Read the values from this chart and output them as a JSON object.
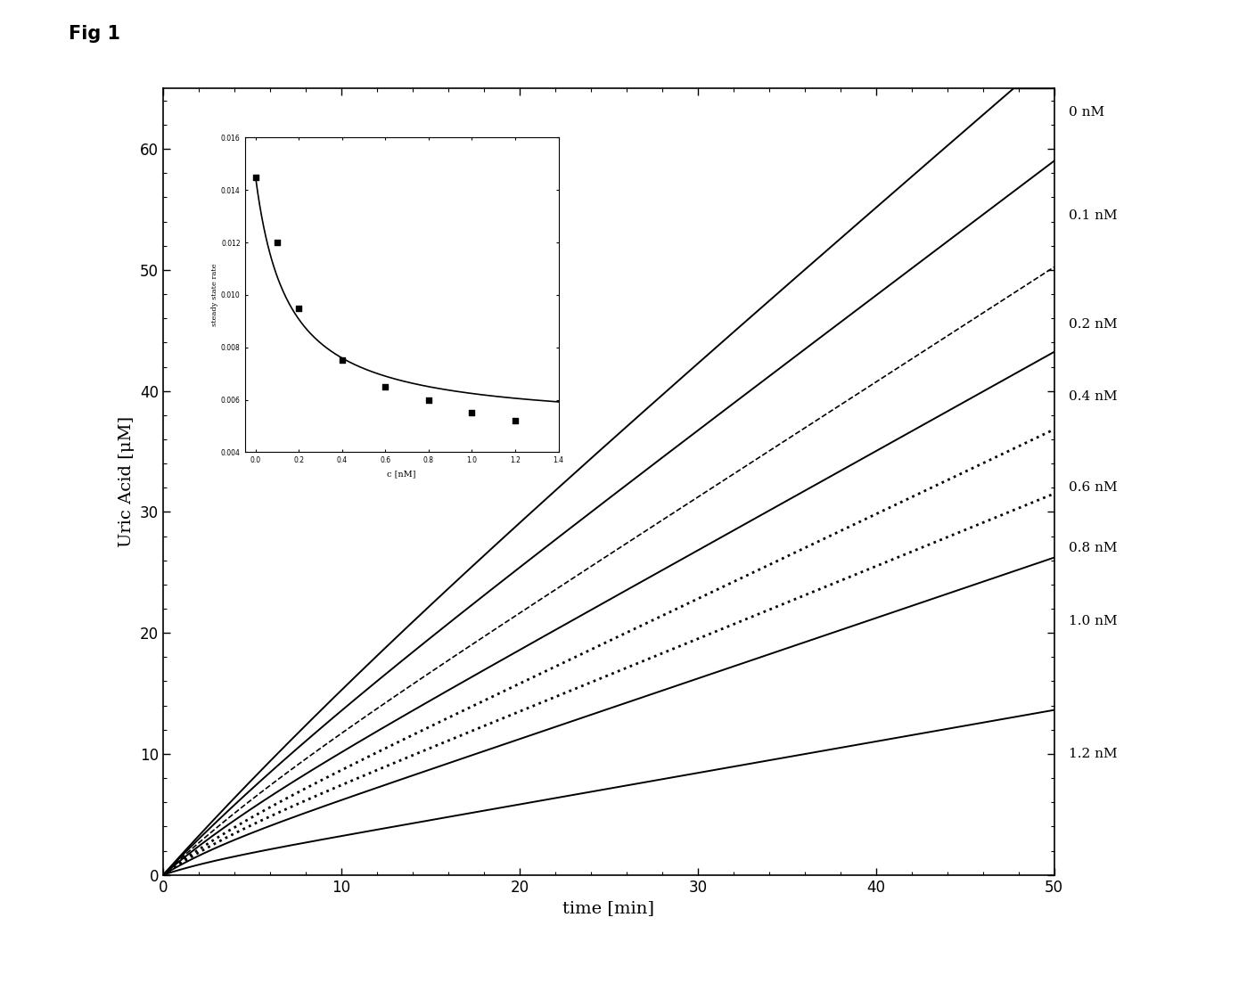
{
  "fig_label": "Fig 1",
  "xlabel": "time [min]",
  "ylabel": "Uric Acid [μM]",
  "xlim": [
    0,
    50
  ],
  "ylim": [
    0,
    65
  ],
  "xticks": [
    0,
    10,
    20,
    30,
    40,
    50
  ],
  "yticks": [
    0,
    10,
    20,
    30,
    40,
    50,
    60
  ],
  "curves": [
    {
      "label": "0 nM",
      "a": 1.265,
      "b": 1.0,
      "linestyle": "solid",
      "lw": 1.4
    },
    {
      "label": "0.1 nM",
      "a": 1.11,
      "b": 0.97,
      "linestyle": "solid",
      "lw": 1.4
    },
    {
      "label": "0.2 nM",
      "a": 0.95,
      "b": 0.93,
      "linestyle": "dashed",
      "lw": 1.2
    },
    {
      "label": "0.4 nM",
      "a": 0.82,
      "b": 0.9,
      "linestyle": "solid",
      "lw": 1.4
    },
    {
      "label": "0.6 nM",
      "a": 0.7,
      "b": 0.87,
      "linestyle": "dotted",
      "lw": 2.0
    },
    {
      "label": "0.8 nM",
      "a": 0.6,
      "b": 0.85,
      "linestyle": "dotted",
      "lw": 2.0
    },
    {
      "label": "1.0 nM",
      "a": 0.5,
      "b": 0.83,
      "linestyle": "solid",
      "lw": 1.4
    },
    {
      "label": "1.2 nM",
      "a": 0.26,
      "b": 0.8,
      "linestyle": "solid",
      "lw": 1.4
    }
  ],
  "label_y_end": [
    63.0,
    54.5,
    45.5,
    39.5,
    32.0,
    27.0,
    21.0,
    10.0
  ],
  "inset": {
    "x_data": [
      0.0,
      0.1,
      0.2,
      0.4,
      0.6,
      0.8,
      1.0,
      1.2
    ],
    "y_data": [
      0.0145,
      0.012,
      0.0095,
      0.0075,
      0.0065,
      0.006,
      0.0055,
      0.0052
    ],
    "xlabel": "c [nM]",
    "ylabel": "steady state rate",
    "xlim": [
      -0.05,
      1.4
    ],
    "ylim": [
      0.004,
      0.016
    ],
    "Ki": 0.15,
    "A": 0.0095,
    "C": 0.005
  }
}
